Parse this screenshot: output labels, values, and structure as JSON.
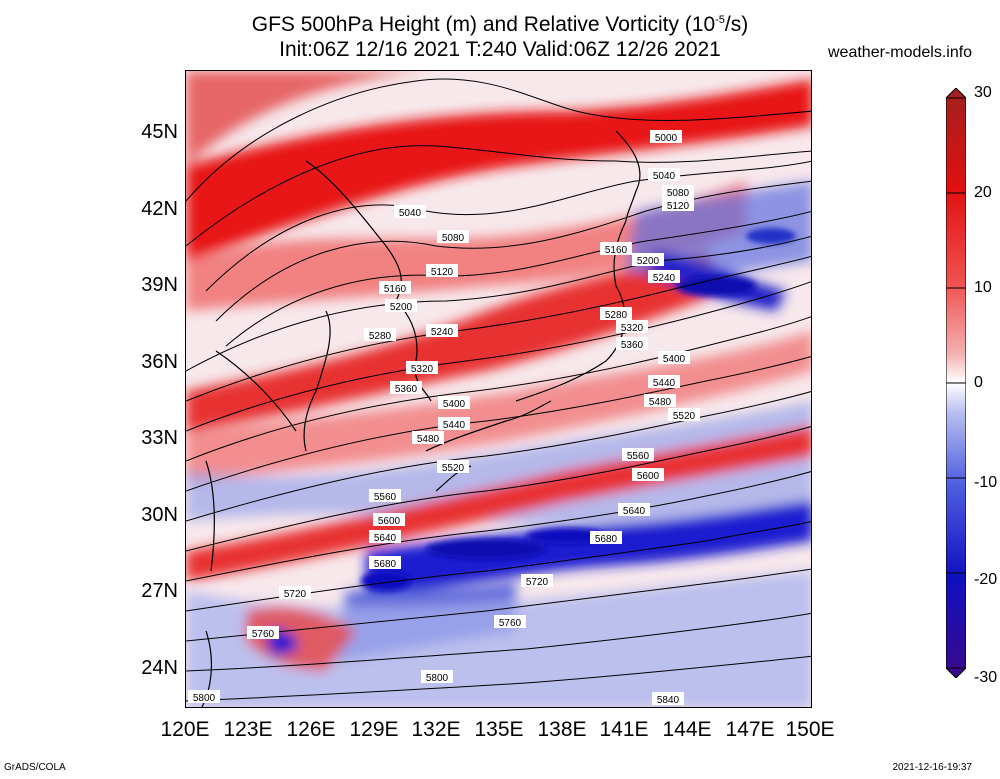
{
  "title": {
    "line1_prefix": "GFS 500hPa Height (m) and Relative Vorticity (10",
    "line1_sup": "-5",
    "line1_suffix": "/s)",
    "line2": "Init:06Z 12/16 2021 T:240 Valid:06Z 12/26 2021"
  },
  "site": "weather-models.info",
  "lat_labels": [
    "45N",
    "42N",
    "39N",
    "36N",
    "33N",
    "30N",
    "27N",
    "24N"
  ],
  "lon_labels": [
    "120E",
    "123E",
    "126E",
    "129E",
    "132E",
    "135E",
    "138E",
    "141E",
    "144E",
    "147E",
    "150E"
  ],
  "colorbar": {
    "labels": [
      "30",
      "20",
      "10",
      "0",
      "-10",
      "-20",
      "-30"
    ],
    "colors": [
      "#3a0a8a",
      "#1010c0",
      "#5060e0",
      "#b8bff0",
      "#ffffff",
      "#f4b0b0",
      "#f05050",
      "#e01010",
      "#a02020"
    ]
  },
  "contour_labels": [
    "5000",
    "5040",
    "5080",
    "5120",
    "5040",
    "5080",
    "5120",
    "5160",
    "5200",
    "5240",
    "5160",
    "5200",
    "5240",
    "5280",
    "5280",
    "5320",
    "5360",
    "5320",
    "5360",
    "5400",
    "5440",
    "5480",
    "5400",
    "5440",
    "5480",
    "5520",
    "5520",
    "5560",
    "5600",
    "5560",
    "5600",
    "5640",
    "5640",
    "5680",
    "5680",
    "5720",
    "5720",
    "5760",
    "5760",
    "5800",
    "5800",
    "5840"
  ],
  "footer": {
    "left": "GrADS/COLA",
    "right": "2021-12-16-19:37"
  }
}
